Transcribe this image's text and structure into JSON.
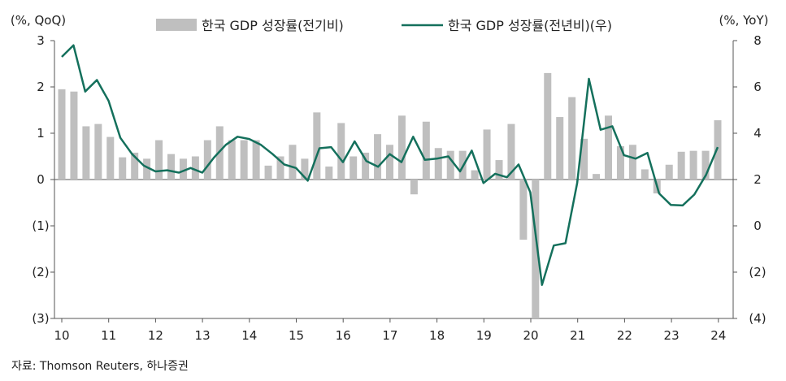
{
  "chart_data": {
    "type": "bar+line",
    "left_axis_unit": "(%, QoQ)",
    "right_axis_unit": "(%, YoY)",
    "left_ylim": [
      -3,
      3
    ],
    "right_ylim": [
      -4,
      8
    ],
    "left_ticks": [
      {
        "value": 3,
        "label": "3"
      },
      {
        "value": 2,
        "label": "2"
      },
      {
        "value": 1,
        "label": "1"
      },
      {
        "value": 0,
        "label": "0"
      },
      {
        "value": -1,
        "label": "(1)"
      },
      {
        "value": -2,
        "label": "(2)"
      },
      {
        "value": -3,
        "label": "(3)"
      }
    ],
    "right_ticks": [
      {
        "value": 8,
        "label": "8"
      },
      {
        "value": 6,
        "label": "6"
      },
      {
        "value": 4,
        "label": "4"
      },
      {
        "value": 2,
        "label": "2"
      },
      {
        "value": 0,
        "label": "0"
      },
      {
        "value": -2,
        "label": "(2)"
      },
      {
        "value": -4,
        "label": "(4)"
      }
    ],
    "x_labels": [
      "10",
      "11",
      "12",
      "13",
      "14",
      "15",
      "16",
      "17",
      "18",
      "19",
      "20",
      "21",
      "22",
      "23",
      "24"
    ],
    "legend_position": "top-center",
    "series": [
      {
        "name": "한국 GDP 성장률(전기비)",
        "kind": "bar",
        "axis": "left",
        "color": "#bfbfbf",
        "values": [
          1.95,
          1.9,
          1.15,
          1.2,
          0.92,
          0.48,
          0.58,
          0.45,
          0.85,
          0.55,
          0.45,
          0.5,
          0.85,
          1.15,
          0.85,
          0.85,
          0.85,
          0.3,
          0.5,
          0.75,
          0.45,
          1.45,
          0.28,
          1.22,
          0.5,
          0.58,
          0.98,
          0.75,
          1.38,
          -0.32,
          1.25,
          0.68,
          0.62,
          0.62,
          0.2,
          1.08,
          0.42,
          1.2,
          -1.3,
          -3.0,
          2.3,
          1.35,
          1.78,
          0.88,
          0.12,
          1.38,
          0.72,
          0.75,
          0.22,
          -0.3,
          0.32,
          0.6,
          0.62,
          0.62,
          1.28
        ]
      },
      {
        "name": "한국 GDP 성장률(전년비)(우)",
        "kind": "line",
        "axis": "right",
        "color": "#14705c",
        "values": [
          7.3,
          7.8,
          5.8,
          6.3,
          5.4,
          3.8,
          3.1,
          2.6,
          2.35,
          2.4,
          2.3,
          2.5,
          2.3,
          2.95,
          3.5,
          3.85,
          3.75,
          3.5,
          3.1,
          2.65,
          2.5,
          1.95,
          3.35,
          3.4,
          2.75,
          3.65,
          2.8,
          2.55,
          3.1,
          2.75,
          3.85,
          2.85,
          2.9,
          3.0,
          2.35,
          3.25,
          1.85,
          2.25,
          2.1,
          2.65,
          1.45,
          -2.55,
          -0.85,
          -0.75,
          1.85,
          6.35,
          4.15,
          4.3,
          3.05,
          2.9,
          3.15,
          1.4,
          0.9,
          0.88,
          1.35,
          2.2,
          3.4
        ]
      }
    ]
  },
  "source": "자료: Thomson Reuters, 하나증권"
}
